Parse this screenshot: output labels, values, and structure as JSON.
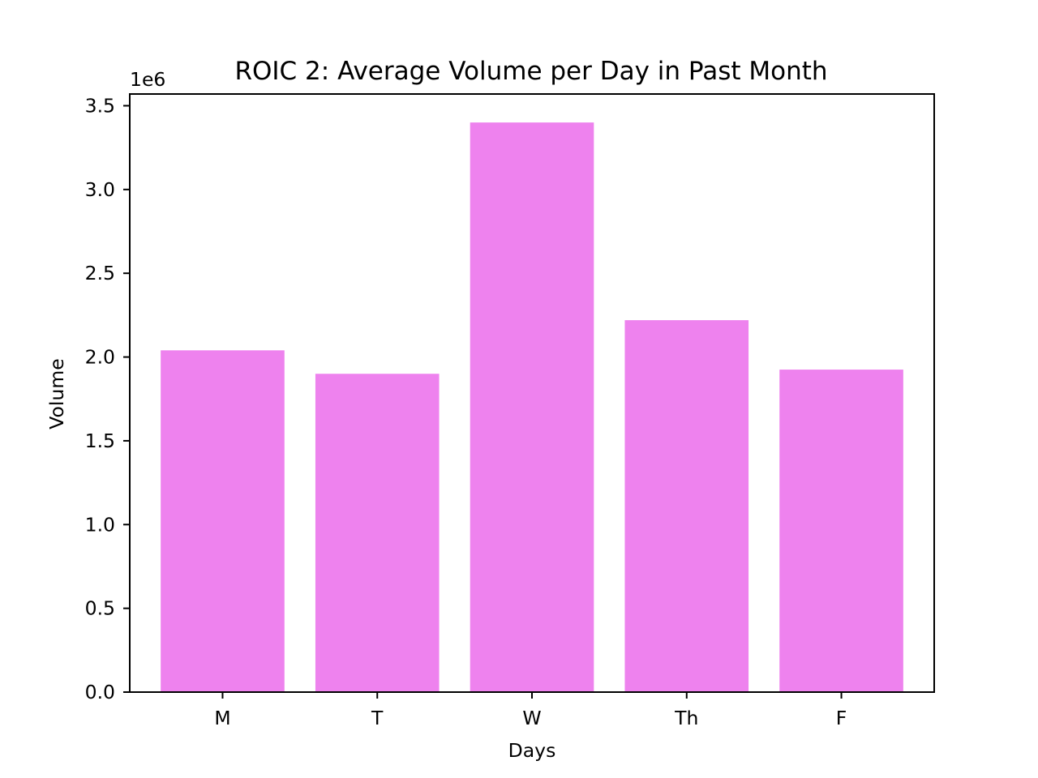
{
  "chart_data": {
    "type": "bar",
    "title": "ROIC 2: Average Volume per Day in Past Month",
    "xlabel": "Days",
    "ylabel": "Volume",
    "y_offset_label": "1e6",
    "categories": [
      "M",
      "T",
      "W",
      "Th",
      "F"
    ],
    "values": [
      2040000,
      1900000,
      3400000,
      2220000,
      1925000
    ],
    "ylim": [
      0,
      3570000
    ],
    "yticks": [
      0,
      500000,
      1000000,
      1500000,
      2000000,
      2500000,
      3000000,
      3500000
    ],
    "ytick_labels": [
      "0.0",
      "0.5",
      "1.0",
      "1.5",
      "2.0",
      "2.5",
      "3.0",
      "3.5"
    ],
    "bar_color": "#ee82ee",
    "grid": false,
    "legend": "none"
  }
}
